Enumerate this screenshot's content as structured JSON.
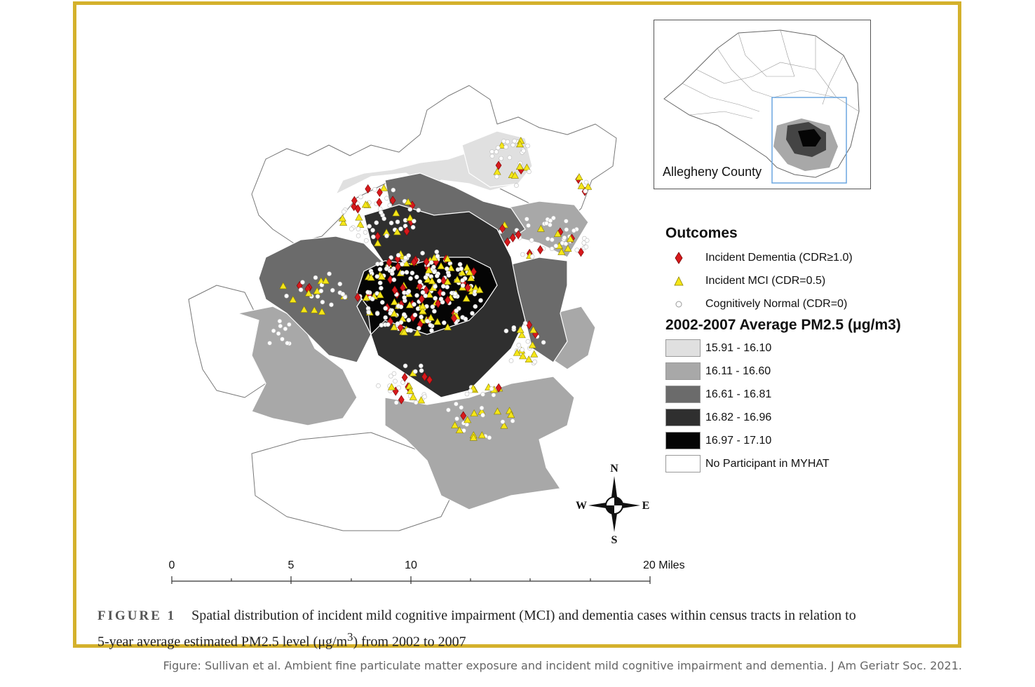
{
  "inset": {
    "label": "Allegheny County"
  },
  "legend": {
    "outcomes_title": "Outcomes",
    "outcomes": [
      {
        "symbol": "red-diamond",
        "color": "#d7191c",
        "label": "Incident Dementia (CDR≥1.0)"
      },
      {
        "symbol": "yellow-triangle",
        "color": "#f5e617",
        "label": "Incident MCI (CDR=0.5)"
      },
      {
        "symbol": "white-circle",
        "color": "#ffffff",
        "label": "Cognitively Normal (CDR=0)"
      }
    ],
    "pm_title": "2002-2007 Average PM2.5 (μg/m3)",
    "pm_classes": [
      {
        "color": "#e0e0e0",
        "label": "15.91 - 16.10"
      },
      {
        "color": "#a8a8a8",
        "label": "16.11 - 16.60"
      },
      {
        "color": "#6b6b6b",
        "label": "16.61 - 16.81"
      },
      {
        "color": "#2f2f2f",
        "label": "16.82 - 16.96"
      },
      {
        "color": "#050505",
        "label": "16.97 - 17.10"
      },
      {
        "color": "#ffffff",
        "label": "No Participant in MYHAT"
      }
    ]
  },
  "compass": {
    "n": "N",
    "s": "S",
    "e": "E",
    "w": "W"
  },
  "scale": {
    "ticks": [
      "0",
      "5",
      "10",
      "20 Miles"
    ]
  },
  "caption": {
    "figure_label": "FIGURE 1",
    "text_line1": "Spatial distribution of incident mild cognitive impairment (MCI) and dementia cases within census tracts in relation to",
    "text_line2_pre": "5-year average estimated PM2.5 level (μg/m",
    "text_line2_sup": "3",
    "text_line2_post": ") from 2002 to 2007"
  },
  "source": "Figure: Sullivan et al. Ambient fine particulate matter exposure and incident mild cognitive impairment and dementia. J Am Geriatr Soc. 2021."
}
